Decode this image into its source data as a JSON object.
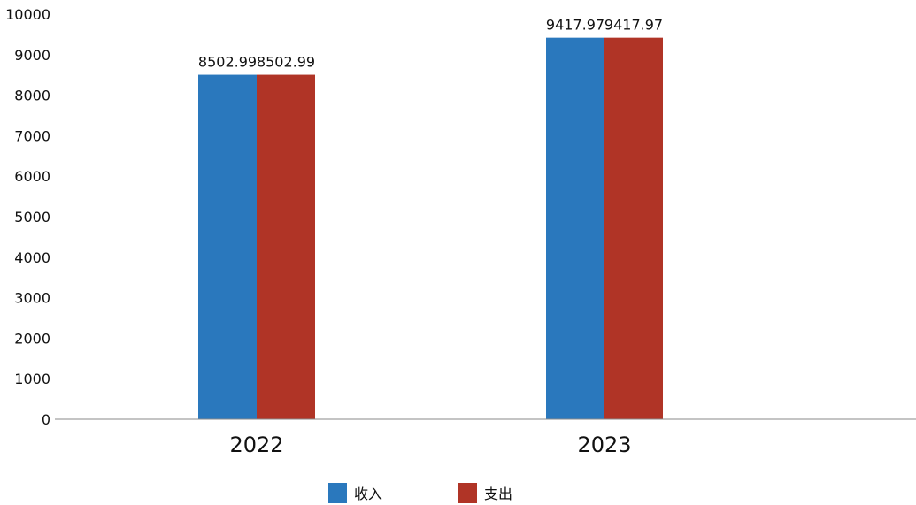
{
  "chart_data": {
    "type": "bar",
    "categories": [
      "2022",
      "2023"
    ],
    "series": [
      {
        "name": "收入",
        "values": [
          8502.99,
          9417.97
        ],
        "labels": [
          "8502.99",
          "9417.97"
        ],
        "color": "#2a78bd"
      },
      {
        "name": "支出",
        "values": [
          8502.99,
          9417.97
        ],
        "labels": [
          "8502.99",
          "9417.97"
        ],
        "color": "#b03426"
      }
    ],
    "yticks": [
      "0",
      "1000",
      "2000",
      "3000",
      "4000",
      "5000",
      "6000",
      "7000",
      "8000",
      "9000",
      "10000"
    ],
    "ylim": [
      0,
      10000
    ],
    "grid": false,
    "legend": "bottom-center",
    "axis_color": "#8a8a8a"
  }
}
